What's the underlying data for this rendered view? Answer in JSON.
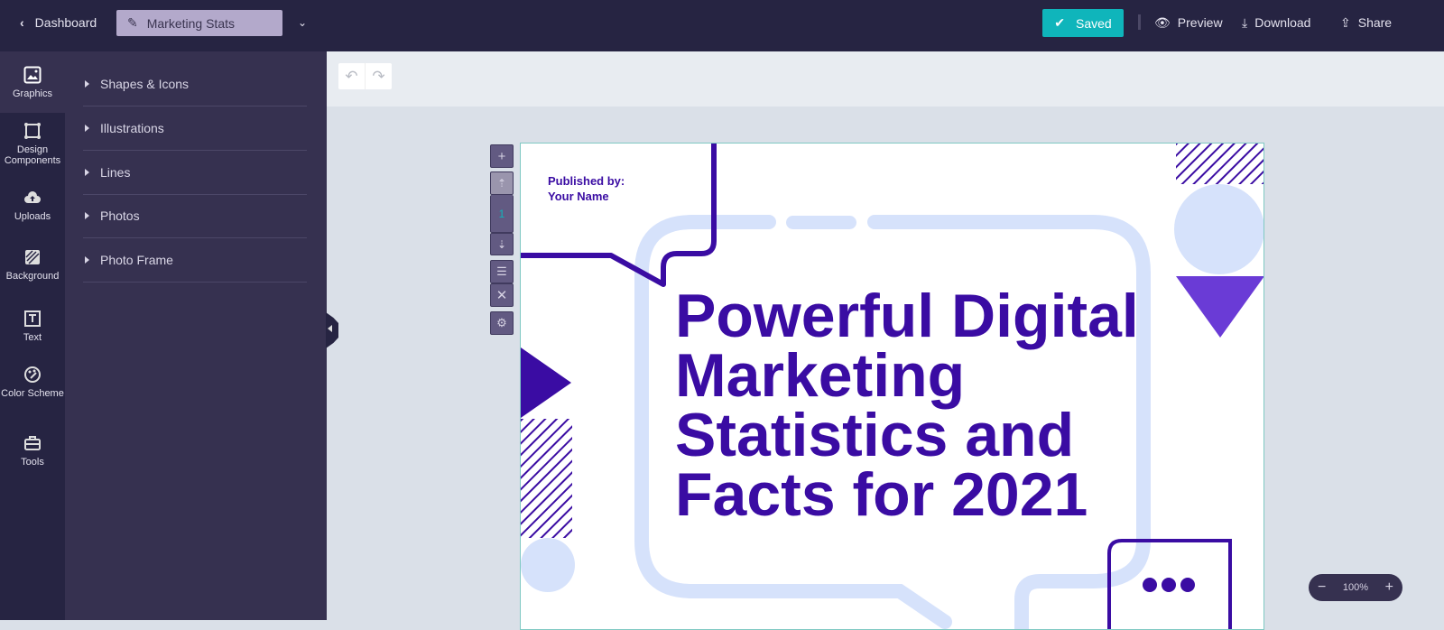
{
  "header": {
    "back_label": "Dashboard",
    "document_name": "Marketing Stats",
    "saved_label": "Saved",
    "preview_label": "Preview",
    "download_label": "Download",
    "share_label": "Share"
  },
  "rail": {
    "items": [
      {
        "label": "Graphics",
        "icon": "image-icon"
      },
      {
        "label": "Design Components",
        "icon": "component-icon"
      },
      {
        "label": "Uploads",
        "icon": "cloud-upload-icon"
      },
      {
        "label": "Background",
        "icon": "background-icon"
      },
      {
        "label": "Text",
        "icon": "text-icon"
      },
      {
        "label": "Color Scheme",
        "icon": "palette-icon"
      },
      {
        "label": "Tools",
        "icon": "toolbox-icon"
      }
    ]
  },
  "panel": {
    "items": [
      "Shapes & Icons",
      "Illustrations",
      "Lines",
      "Photos",
      "Photo Frame"
    ]
  },
  "page_controls": {
    "page_number": "1"
  },
  "canvas": {
    "published_by": "Published by:",
    "author": "Your Name",
    "title": "Powerful Digital Marketing Statistics and Facts for 2021"
  },
  "zoom": {
    "level": "100%"
  },
  "colors": {
    "accent": "#0fb5bb",
    "brand_purple": "#3a0ca3",
    "light_blue": "#d6e2fb",
    "violet": "#6a3bd6"
  }
}
